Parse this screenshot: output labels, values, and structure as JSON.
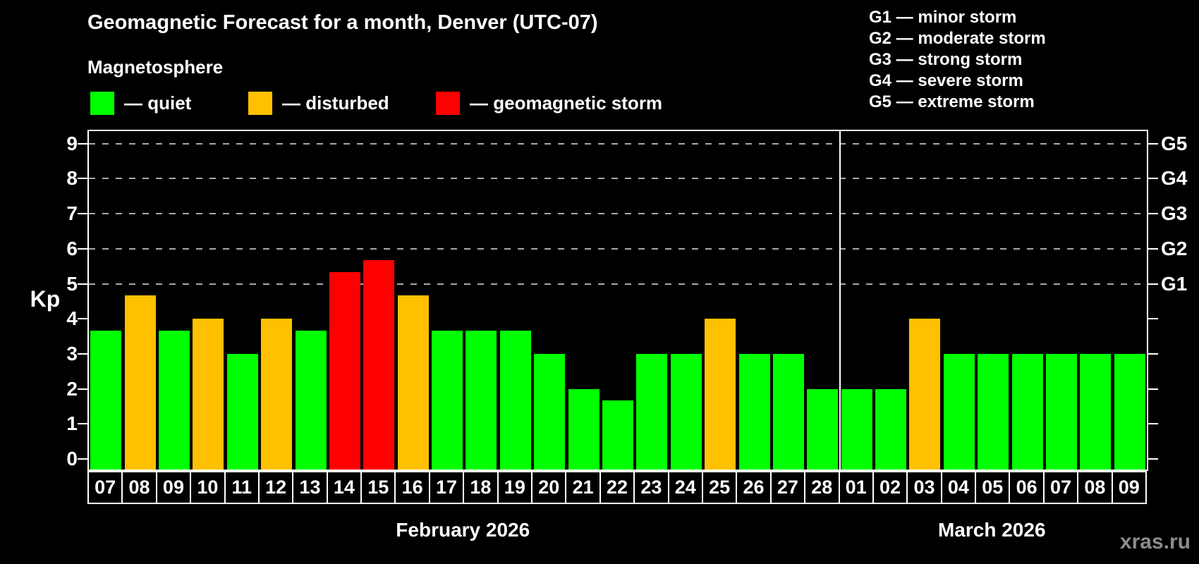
{
  "title": "Geomagnetic Forecast for a month, Denver (UTC-07)",
  "subtitle": "Magnetosphere",
  "legend": {
    "items": [
      {
        "status": "quiet",
        "label": "— quiet",
        "color": "#00ff00"
      },
      {
        "status": "disturbed",
        "label": "— disturbed",
        "color": "#ffc000"
      },
      {
        "status": "storm",
        "label": "— geomagnetic storm",
        "color": "#ff0000"
      }
    ]
  },
  "g_scale_legend": [
    "G1 — minor storm",
    "G2 — moderate storm",
    "G3 — strong storm",
    "G4 — severe storm",
    "G5 — extreme storm"
  ],
  "watermark": "xras.ru",
  "chart_data": {
    "type": "bar",
    "ylabel": "Kp",
    "ylim": [
      0,
      9
    ],
    "y_ticks": [
      0,
      1,
      2,
      3,
      4,
      5,
      6,
      7,
      8,
      9
    ],
    "grid_kp_levels": [
      5,
      6,
      7,
      8,
      9
    ],
    "right_axis_labels": [
      {
        "label": "G1",
        "kp": 5
      },
      {
        "label": "G2",
        "kp": 6
      },
      {
        "label": "G3",
        "kp": 7
      },
      {
        "label": "G4",
        "kp": 8
      },
      {
        "label": "G5",
        "kp": 9
      }
    ],
    "status_colors": {
      "quiet": "#00ff00",
      "disturbed": "#ffc000",
      "storm": "#ff0000"
    },
    "months": [
      {
        "label": "February 2026",
        "days": 22
      },
      {
        "label": "March 2026",
        "days": 9
      }
    ],
    "bars": [
      {
        "day": "07",
        "kp": 3.67,
        "status": "quiet"
      },
      {
        "day": "08",
        "kp": 4.67,
        "status": "disturbed"
      },
      {
        "day": "09",
        "kp": 3.67,
        "status": "quiet"
      },
      {
        "day": "10",
        "kp": 4.0,
        "status": "disturbed"
      },
      {
        "day": "11",
        "kp": 3.0,
        "status": "quiet"
      },
      {
        "day": "12",
        "kp": 4.0,
        "status": "disturbed"
      },
      {
        "day": "13",
        "kp": 3.67,
        "status": "quiet"
      },
      {
        "day": "14",
        "kp": 5.33,
        "status": "storm"
      },
      {
        "day": "15",
        "kp": 5.67,
        "status": "storm"
      },
      {
        "day": "16",
        "kp": 4.67,
        "status": "disturbed"
      },
      {
        "day": "17",
        "kp": 3.67,
        "status": "quiet"
      },
      {
        "day": "18",
        "kp": 3.67,
        "status": "quiet"
      },
      {
        "day": "19",
        "kp": 3.67,
        "status": "quiet"
      },
      {
        "day": "20",
        "kp": 3.0,
        "status": "quiet"
      },
      {
        "day": "21",
        "kp": 2.0,
        "status": "quiet"
      },
      {
        "day": "22",
        "kp": 1.67,
        "status": "quiet"
      },
      {
        "day": "23",
        "kp": 3.0,
        "status": "quiet"
      },
      {
        "day": "24",
        "kp": 3.0,
        "status": "quiet"
      },
      {
        "day": "25",
        "kp": 4.0,
        "status": "disturbed"
      },
      {
        "day": "26",
        "kp": 3.0,
        "status": "quiet"
      },
      {
        "day": "27",
        "kp": 3.0,
        "status": "quiet"
      },
      {
        "day": "28",
        "kp": 2.0,
        "status": "quiet"
      },
      {
        "day": "01",
        "kp": 2.0,
        "status": "quiet"
      },
      {
        "day": "02",
        "kp": 2.0,
        "status": "quiet"
      },
      {
        "day": "03",
        "kp": 4.0,
        "status": "disturbed"
      },
      {
        "day": "04",
        "kp": 3.0,
        "status": "quiet"
      },
      {
        "day": "05",
        "kp": 3.0,
        "status": "quiet"
      },
      {
        "day": "06",
        "kp": 3.0,
        "status": "quiet"
      },
      {
        "day": "07",
        "kp": 3.0,
        "status": "quiet"
      },
      {
        "day": "08",
        "kp": 3.0,
        "status": "quiet"
      },
      {
        "day": "09",
        "kp": 3.0,
        "status": "quiet"
      }
    ]
  }
}
